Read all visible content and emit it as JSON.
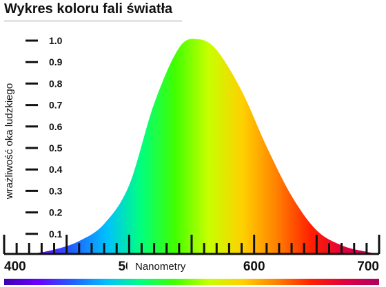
{
  "title": "Wykres koloru fali światła",
  "chart_data": {
    "type": "area",
    "title": "Wykres koloru fali światła",
    "xlabel": "Nanometry",
    "ylabel": "wrażliwość oka ludzkiego",
    "xlim": [
      400,
      700
    ],
    "ylim": [
      0,
      1.0
    ],
    "x_ticks": [
      "400",
      "500",
      "600",
      "700"
    ],
    "y_ticks": [
      "0.1",
      "0.2",
      "0.3",
      "0.4",
      "0.5",
      "0.6",
      "0.7",
      "0.8",
      "0.9",
      "1.0"
    ],
    "grid": false,
    "x": [
      400,
      420,
      440,
      460,
      480,
      500,
      520,
      540,
      555,
      570,
      590,
      610,
      630,
      650,
      670,
      690,
      700
    ],
    "y": [
      0.0,
      0.0,
      0.02,
      0.06,
      0.14,
      0.32,
      0.7,
      0.96,
      1.0,
      0.95,
      0.76,
      0.5,
      0.27,
      0.11,
      0.04,
      0.01,
      0.0
    ],
    "spectrum_colors": [
      "#3c00b4",
      "#6a00ff",
      "#2060ff",
      "#00c0ff",
      "#00ff80",
      "#40ff00",
      "#c8ff00",
      "#ffd000",
      "#ff8000",
      "#ff2000",
      "#e00040",
      "#b00060"
    ]
  }
}
